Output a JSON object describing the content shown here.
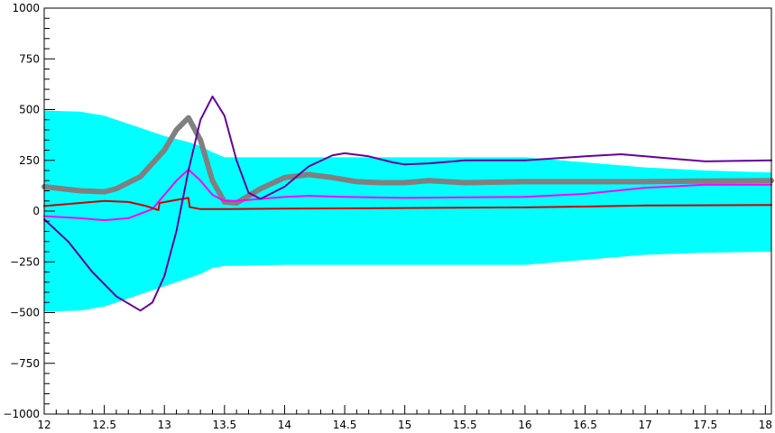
{
  "chart_data": {
    "type": "line",
    "title": "",
    "xlabel": "",
    "ylabel": "",
    "xlim": [
      12,
      18.05
    ],
    "ylim": [
      -1000,
      1000
    ],
    "grid": false,
    "legend": "none",
    "x_ticks": [
      {
        "value": 12,
        "label": "12"
      },
      {
        "value": 12.5,
        "label": "12.5"
      },
      {
        "value": 13,
        "label": "13"
      },
      {
        "value": 13.5,
        "label": "13.5"
      },
      {
        "value": 14,
        "label": "14"
      },
      {
        "value": 14.5,
        "label": "14.5"
      },
      {
        "value": 15,
        "label": "15"
      },
      {
        "value": 15.5,
        "label": "15.5"
      },
      {
        "value": 16,
        "label": "16"
      },
      {
        "value": 16.5,
        "label": "16.5"
      },
      {
        "value": 17,
        "label": "17"
      },
      {
        "value": 17.5,
        "label": "17.5"
      },
      {
        "value": 18,
        "label": "18"
      }
    ],
    "y_ticks": [
      {
        "value": 1000,
        "label": "1000"
      },
      {
        "value": 750,
        "label": "750"
      },
      {
        "value": 500,
        "label": "500"
      },
      {
        "value": 250,
        "label": "250"
      },
      {
        "value": 0,
        "label": "0"
      },
      {
        "value": -250,
        "label": "−250"
      },
      {
        "value": -500,
        "label": "−500"
      },
      {
        "value": -750,
        "label": "−750"
      },
      {
        "value": -1000,
        "label": "−1000"
      }
    ],
    "band": {
      "color": "#00ffff",
      "x": [
        12,
        12.3,
        12.5,
        12.7,
        12.9,
        13.0,
        13.2,
        13.3,
        13.4,
        13.5,
        14.0,
        15.0,
        16.0,
        16.5,
        17.0,
        17.5,
        18.05
      ],
      "upper": [
        495,
        490,
        470,
        430,
        390,
        370,
        340,
        320,
        290,
        265,
        265,
        265,
        265,
        240,
        215,
        200,
        190
      ],
      "lower": [
        -495,
        -490,
        -470,
        -430,
        -390,
        -370,
        -330,
        -310,
        -280,
        -270,
        -265,
        -265,
        -265,
        -240,
        -215,
        -205,
        -200
      ]
    },
    "series": [
      {
        "color": "#808080",
        "width": 6,
        "x": [
          12,
          12.3,
          12.5,
          12.6,
          12.8,
          13.0,
          13.1,
          13.2,
          13.3,
          13.4,
          13.5,
          13.6,
          13.8,
          14.0,
          14.2,
          14.4,
          14.6,
          14.8,
          15.0,
          15.2,
          15.5,
          16.0,
          16.5,
          17.0,
          17.5,
          18.05
        ],
        "y": [
          120,
          100,
          95,
          110,
          170,
          300,
          400,
          460,
          350,
          150,
          45,
          40,
          110,
          165,
          180,
          165,
          145,
          140,
          140,
          150,
          140,
          145,
          145,
          145,
          148,
          150
        ]
      },
      {
        "color": "#ff00ff",
        "width": 2,
        "x": [
          12,
          12.3,
          12.5,
          12.7,
          12.9,
          13.0,
          13.1,
          13.2,
          13.3,
          13.4,
          13.5,
          13.6,
          14.0,
          14.2,
          14.5,
          15.0,
          15.5,
          16.0,
          16.5,
          17.0,
          17.5,
          18.05
        ],
        "y": [
          -25,
          -35,
          -45,
          -35,
          10,
          80,
          150,
          205,
          150,
          80,
          50,
          50,
          70,
          75,
          70,
          65,
          68,
          70,
          85,
          115,
          130,
          130
        ]
      },
      {
        "color": "#cc0000",
        "width": 2,
        "x": [
          12,
          12.2,
          12.5,
          12.7,
          12.85,
          12.95,
          12.96,
          13.1,
          13.2,
          13.21,
          13.3,
          13.5,
          14.0,
          15.0,
          16.0,
          16.5,
          17.0,
          18.05
        ],
        "y": [
          25,
          35,
          50,
          45,
          25,
          5,
          40,
          55,
          65,
          20,
          10,
          10,
          12,
          15,
          18,
          22,
          28,
          30
        ]
      },
      {
        "color": "#660099",
        "width": 2,
        "x": [
          12,
          12.2,
          12.4,
          12.6,
          12.8,
          12.9,
          13.0,
          13.1,
          13.2,
          13.3,
          13.4,
          13.5,
          13.6,
          13.7,
          13.8,
          14.0,
          14.2,
          14.4,
          14.5,
          14.7,
          14.9,
          15.0,
          15.2,
          15.5,
          16.0,
          16.5,
          16.8,
          17.0,
          17.5,
          18.05
        ],
        "y": [
          -40,
          -150,
          -300,
          -420,
          -490,
          -450,
          -320,
          -100,
          200,
          450,
          565,
          470,
          250,
          90,
          60,
          120,
          220,
          275,
          285,
          270,
          240,
          230,
          235,
          250,
          250,
          270,
          280,
          270,
          245,
          250
        ]
      }
    ]
  }
}
